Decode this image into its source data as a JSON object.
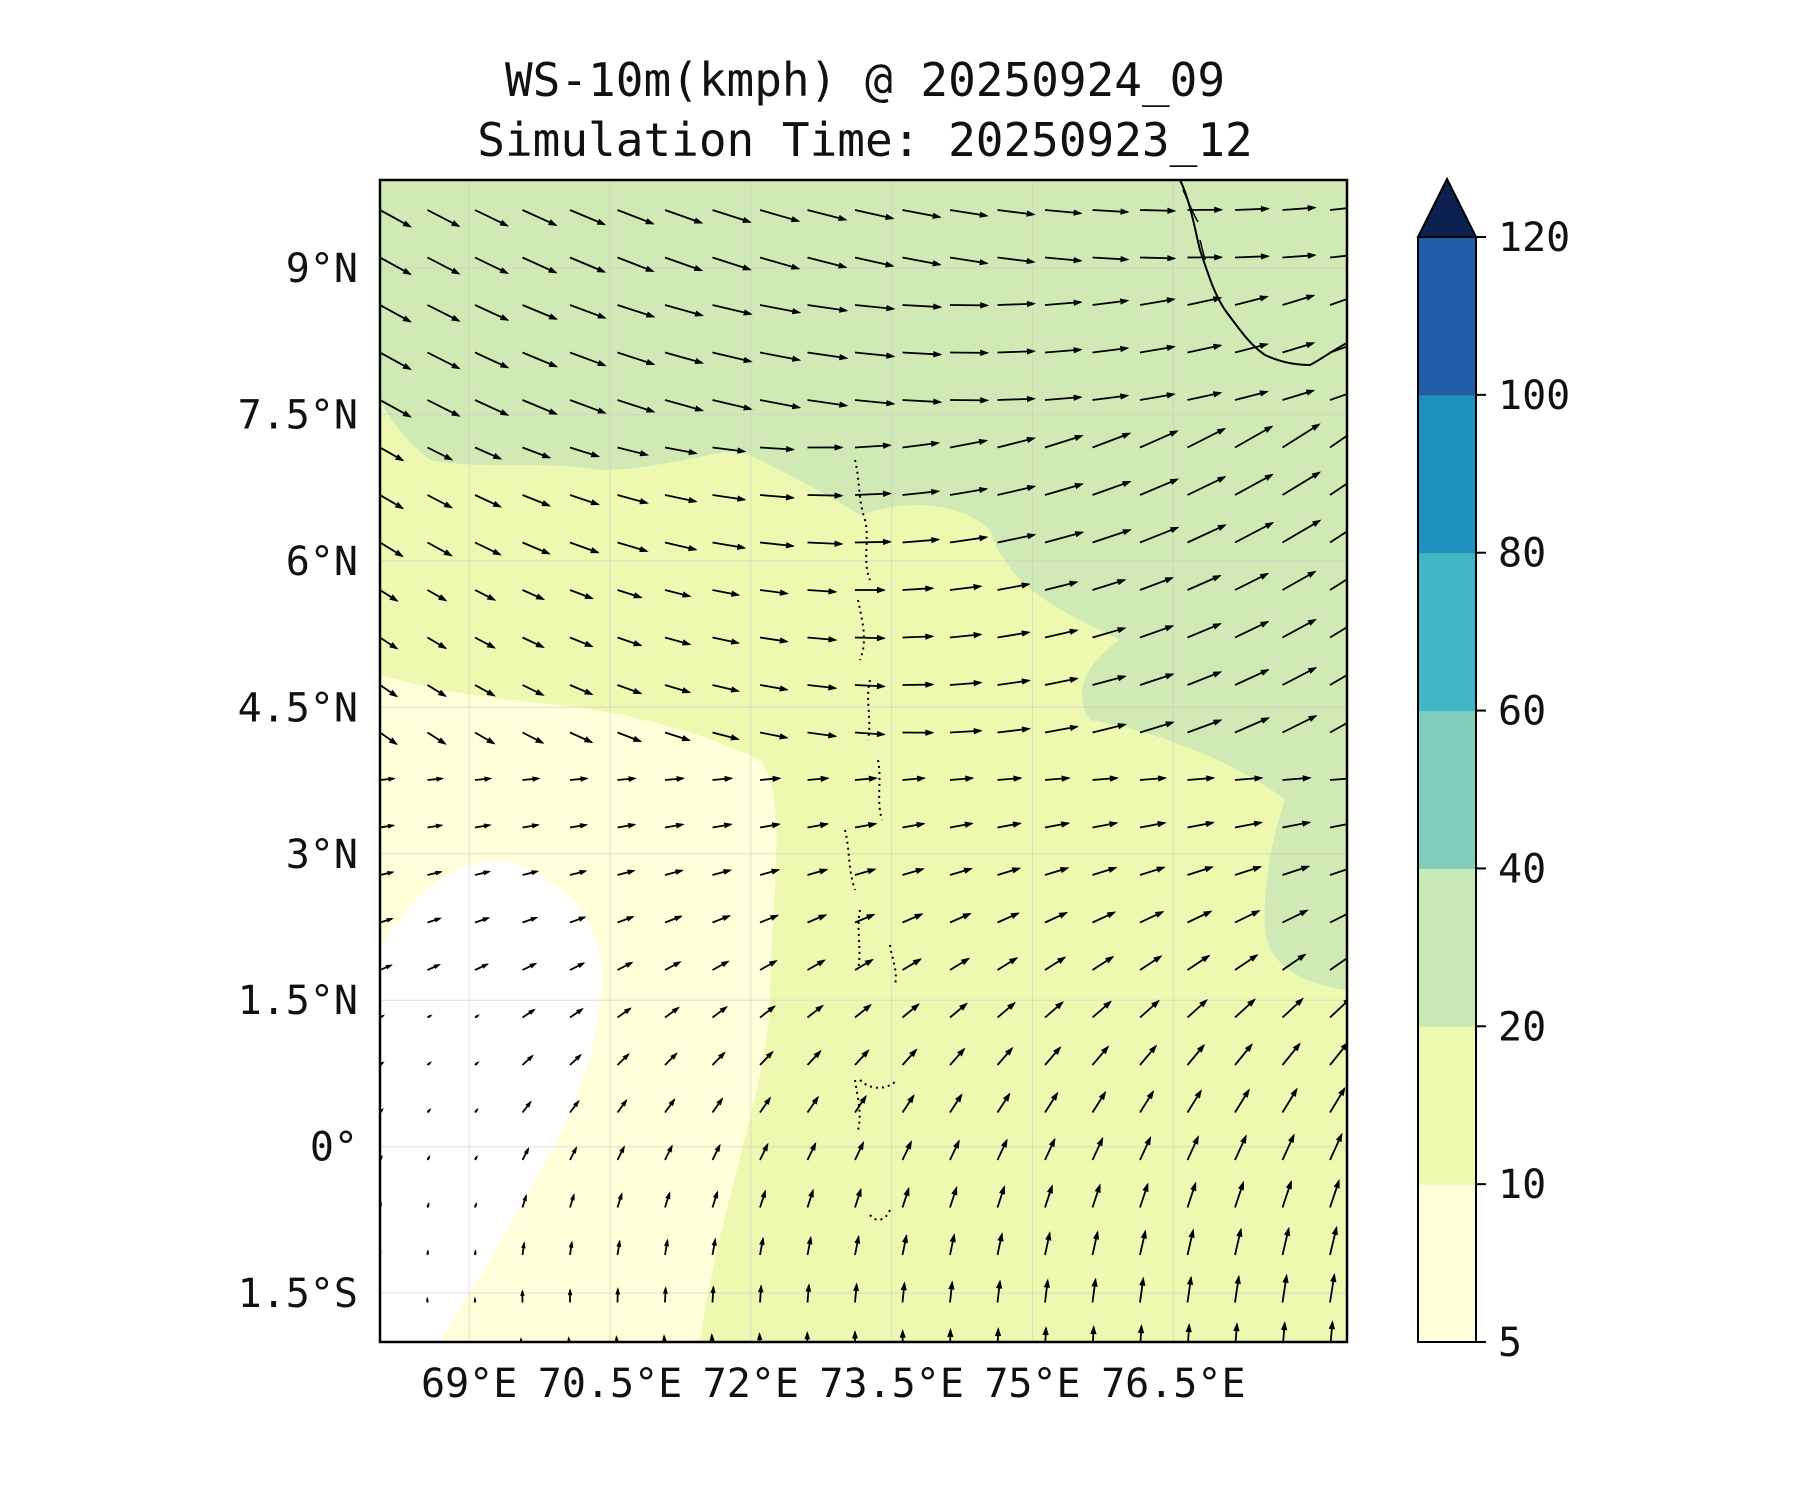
{
  "title": "WS-10m(kmph) @ 20250924_09",
  "subtitle": "Simulation Time: 20250923_12",
  "map": {
    "lon_range": [
      68.05,
      78.35
    ],
    "lat_range": [
      -2.0,
      9.9
    ],
    "lon_ticks": [
      {
        "value": 69,
        "label": "69°E"
      },
      {
        "value": 70.5,
        "label": "70.5°E"
      },
      {
        "value": 72,
        "label": "72°E"
      },
      {
        "value": 73.5,
        "label": "73.5°E"
      },
      {
        "value": 75,
        "label": "75°E"
      },
      {
        "value": 76.5,
        "label": "76.5°E"
      }
    ],
    "lat_ticks": [
      {
        "value": 9,
        "label": "9°N"
      },
      {
        "value": 7.5,
        "label": "7.5°N"
      },
      {
        "value": 6,
        "label": "6°N"
      },
      {
        "value": 4.5,
        "label": "4.5°N"
      },
      {
        "value": 3,
        "label": "3°N"
      },
      {
        "value": 1.5,
        "label": "1.5°N"
      },
      {
        "value": 0,
        "label": "0°"
      },
      {
        "value": -1.5,
        "label": "1.5°S"
      }
    ]
  },
  "colorbar": {
    "levels": [
      {
        "value": 5,
        "label": "5"
      },
      {
        "value": 10,
        "label": "10"
      },
      {
        "value": 20,
        "label": "20"
      },
      {
        "value": 40,
        "label": "40"
      },
      {
        "value": 60,
        "label": "60"
      },
      {
        "value": 80,
        "label": "80"
      },
      {
        "value": 100,
        "label": "100"
      },
      {
        "value": 120,
        "label": "120"
      }
    ],
    "colors": [
      "#ffffd9",
      "#edf8b1",
      "#c7e9b4",
      "#7fcdbb",
      "#41b6c4",
      "#1d91c0",
      "#225ea8",
      "#081d58"
    ],
    "extend_color": "#0c2150"
  },
  "colors": {
    "calm": "#ffffff",
    "low": "#ffffd9",
    "mid": "#edf8b1",
    "high": "#cfeab5",
    "frame": "#000000",
    "arrow": "#000000"
  }
}
